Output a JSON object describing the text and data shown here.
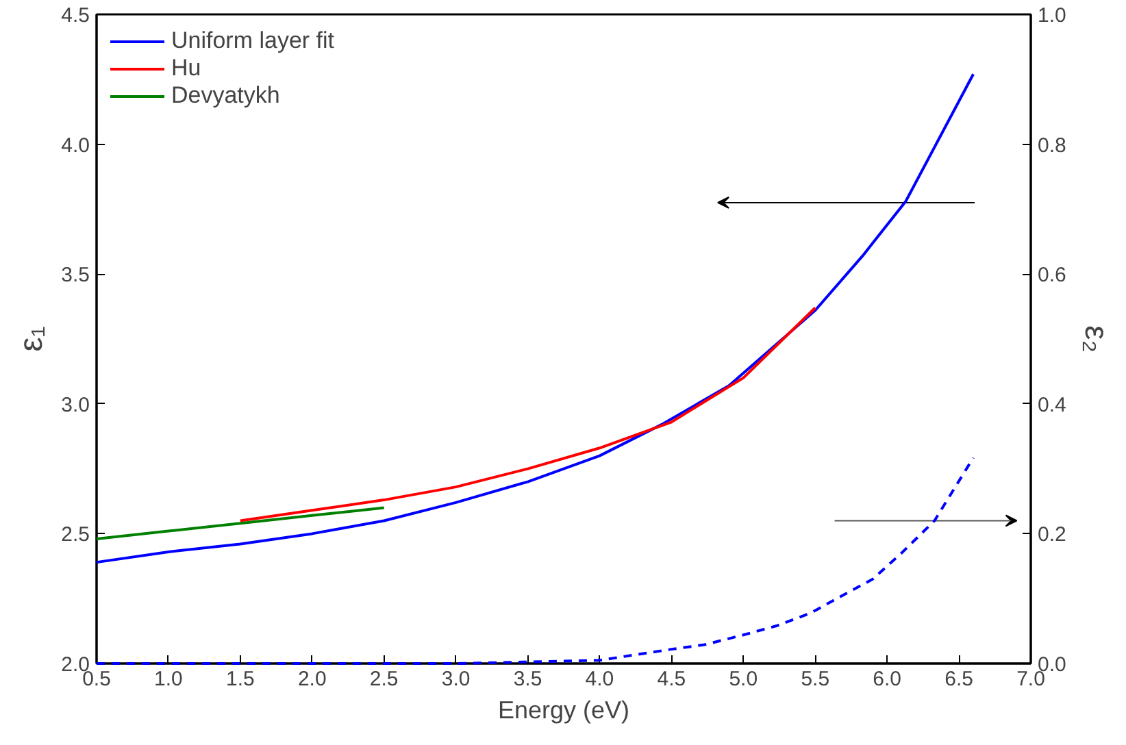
{
  "chart_data": {
    "type": "line",
    "xlabel": "Energy (eV)",
    "ylabel": "ε₁",
    "y2label": "ε₂",
    "xlim": [
      0.5,
      7.0
    ],
    "xticks": [
      {
        "value": 0.5,
        "label": "0.5"
      },
      {
        "value": 1.0,
        "label": "1.0"
      },
      {
        "value": 1.5,
        "label": "1.5"
      },
      {
        "value": 2.0,
        "label": "2.0"
      },
      {
        "value": 2.5,
        "label": "2.5"
      },
      {
        "value": 3.0,
        "label": "3.0"
      },
      {
        "value": 3.5,
        "label": "3.5"
      },
      {
        "value": 4.0,
        "label": "4.0"
      },
      {
        "value": 4.5,
        "label": "4.5"
      },
      {
        "value": 5.0,
        "label": "5.0"
      },
      {
        "value": 5.5,
        "label": "5.5"
      },
      {
        "value": 6.0,
        "label": "6.0"
      },
      {
        "value": 6.5,
        "label": "6.5"
      },
      {
        "value": 7.0,
        "label": "7.0"
      }
    ],
    "ylim": [
      2.0,
      4.5
    ],
    "yticks": [
      {
        "value": 2.0,
        "label": "2.0"
      },
      {
        "value": 2.5,
        "label": "2.5"
      },
      {
        "value": 3.0,
        "label": "3.0"
      },
      {
        "value": 3.5,
        "label": "3.5"
      },
      {
        "value": 4.0,
        "label": "4.0"
      },
      {
        "value": 4.5,
        "label": "4.5"
      }
    ],
    "y2lim": [
      0.0,
      1.0
    ],
    "y2ticks": [
      {
        "value": 0.0,
        "label": "0.0"
      },
      {
        "value": 0.2,
        "label": "0.2"
      },
      {
        "value": 0.4,
        "label": "0.4"
      },
      {
        "value": 0.6,
        "label": "0.6"
      },
      {
        "value": 0.8,
        "label": "0.8"
      },
      {
        "value": 1.0,
        "label": "1.0"
      }
    ],
    "grid": false,
    "legend": "top left",
    "series": [
      {
        "name": "Uniform layer fit",
        "color": "#0000ff",
        "line_style": "solid",
        "x": [
          0.5,
          1.0,
          1.5,
          2.0,
          2.5,
          3.0,
          3.5,
          4.0,
          4.43,
          4.9,
          5.5,
          5.83,
          6.13,
          6.6
        ],
        "values": [
          2.39,
          2.43,
          2.46,
          2.5,
          2.55,
          2.62,
          2.7,
          2.8,
          2.92,
          3.07,
          3.36,
          3.57,
          3.78,
          4.27
        ]
      },
      {
        "name": "Hu",
        "color": "#ff0000",
        "line_style": "solid",
        "x": [
          1.5,
          2.0,
          2.5,
          3.0,
          3.5,
          4.0,
          4.5,
          5.0,
          5.5
        ],
        "values": [
          2.55,
          2.59,
          2.63,
          2.68,
          2.75,
          2.83,
          2.93,
          3.1,
          3.37
        ]
      },
      {
        "name": "Devyatykh",
        "color": "#008000",
        "line_style": "solid",
        "x": [
          0.5,
          1.0,
          1.5,
          2.0,
          2.5
        ],
        "values": [
          2.48,
          2.51,
          2.54,
          2.57,
          2.6
        ]
      },
      {
        "color": "#0000ff",
        "line_style": "dashed",
        "axis": "y2",
        "x": [
          0.5,
          1.0,
          2.0,
          3.0,
          4.0,
          4.5,
          4.73,
          5.0,
          5.23,
          5.47,
          5.7,
          5.9,
          6.1,
          6.33,
          6.6
        ],
        "values": [
          0.0,
          0.0,
          0.0,
          0.0,
          0.005,
          0.022,
          0.029,
          0.044,
          0.058,
          0.078,
          0.106,
          0.13,
          0.17,
          0.22,
          0.317
        ]
      }
    ]
  }
}
